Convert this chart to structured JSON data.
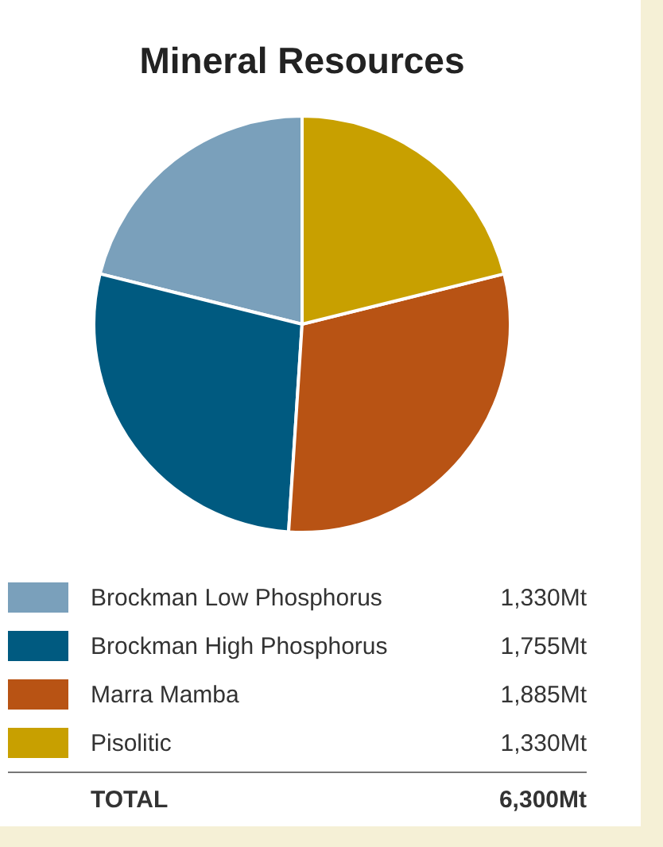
{
  "chart_data": {
    "type": "pie",
    "title": "Mineral Resources",
    "categories": [
      "Brockman Low Phosphorus",
      "Brockman High Phosphorus",
      "Marra Mamba",
      "Pisolitic"
    ],
    "values": [
      1330,
      1755,
      1885,
      1330
    ],
    "colors": [
      "#7aa0bb",
      "#005a80",
      "#b85314",
      "#c8a000"
    ],
    "value_labels": [
      "1,330Mt",
      "1,755Mt",
      "1,885Mt",
      "1,330Mt"
    ],
    "annotations": [
      "TOTAL",
      "6,300Mt"
    ],
    "legend": "bottom"
  }
}
